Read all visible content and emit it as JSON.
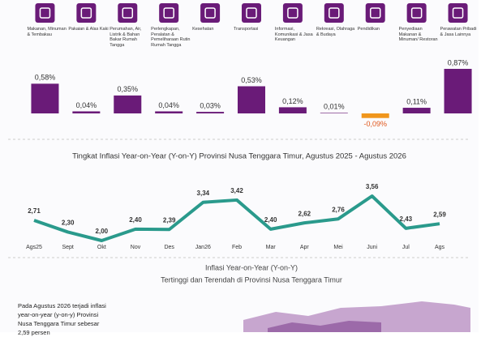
{
  "chart_data": [
    {
      "type": "bar",
      "categories": [
        "Makanan, Minuman & Tembakau",
        "Pakaian & Alas Kaki",
        "Perumahan, Air, Listrik & Bahan Bakar Rumah Tangga",
        "Perlengkapan, Peralatan & Pemeliharaan Rutin Rumah Tangga",
        "Kesehatan",
        "Transportasi",
        "Informasi, Komunikasi & Jasa Keuangan",
        "Rekreasi, Olahraga & Budaya",
        "Pendidikan",
        "Penyediaan Makanan & Minuman/ Restoran",
        "Perawatan Pribadi & Jasa Lainnya"
      ],
      "values": [
        0.58,
        0.04,
        0.35,
        0.04,
        0.03,
        0.53,
        0.12,
        0.01,
        -0.09,
        0.11,
        0.87
      ],
      "value_labels": [
        "0,58%",
        "0,04%",
        "0,35%",
        "0,04%",
        "0,03%",
        "0,53%",
        "0,12%",
        "0,01%",
        "-0,09%",
        "0,11%",
        "0,87%"
      ],
      "color": "#6a1b78",
      "negative_color": "#f0961c"
    },
    {
      "type": "line",
      "title": "Tingkat Inflasi Year-on-Year (Y-on-Y) Provinsi Nusa Tenggara Timur, Agustus 2025 -  Agustus 2026",
      "categories": [
        "Ags25",
        "Sept",
        "Okt",
        "Nov",
        "Des",
        "Jan26",
        "Feb",
        "Mar",
        "Apr",
        "Mei",
        "Juni",
        "Jul",
        "Ags"
      ],
      "values": [
        2.71,
        2.3,
        2.0,
        2.4,
        2.39,
        3.34,
        3.42,
        2.4,
        2.62,
        2.76,
        3.56,
        2.43,
        2.59
      ],
      "value_labels": [
        "2,71",
        "2,30",
        "2,00",
        "2,40",
        "2,39",
        "3,34",
        "3,42",
        "2,40",
        "2,62",
        "2,76",
        "3,56",
        "2,43",
        "2,59"
      ],
      "color": "#2a9a8c"
    }
  ],
  "section": {
    "title": "Inflasi Year-on-Year (Y-on-Y)",
    "subtitle": "Tertinggi dan Terendah di Provinsi Nusa Tenggara Timur",
    "note": "Pada Agustus 2026 terjadi inflasi year-on-year (y-on-y) Provinsi Nusa Tenggara Timur sebesar 2,59 persen"
  }
}
